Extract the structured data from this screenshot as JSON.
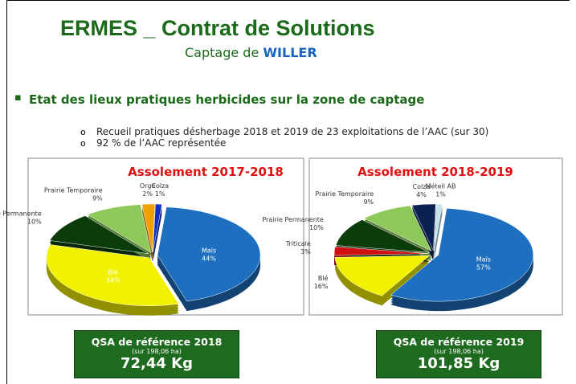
{
  "title": "ERMES _ Contrat de Solutions",
  "subtitle": {
    "text": "Captage de",
    "highlight": "WILLER"
  },
  "bullet": "Etat des lieux pratiques herbicides sur la zone de captage",
  "sub_bullets": [
    "Recueil pratiques désherbage 2018 et 2019 de 23 exploitations de l’AAC (sur 30)",
    "92 % de l’AAC représentée"
  ],
  "chart_data": [
    {
      "type": "pie",
      "title": "Assolement 2017-2018",
      "categories": [
        "Maïs",
        "Blé",
        "Prairie Permanente",
        "Prairie Temporaire",
        "Orge",
        "Colza"
      ],
      "values": [
        44,
        34,
        10,
        9,
        2,
        1
      ],
      "value_labels": [
        "44%",
        "34%",
        "10%",
        "9%",
        "2%",
        "1%"
      ],
      "colors": [
        "#1f6fc0",
        "#f2f200",
        "#0b3d0b",
        "#8dc85a",
        "#f0a000",
        "#1030c0"
      ]
    },
    {
      "type": "pie",
      "title": "Assolement 2018-2019",
      "categories": [
        "Maïs",
        "Blé",
        "Triticale",
        "Prairie Permanente",
        "Prairie Temporaire",
        "Colza",
        "Méteil AB"
      ],
      "values": [
        57,
        16,
        3,
        10,
        9,
        4,
        1
      ],
      "value_labels": [
        "57%",
        "16%",
        "3%",
        "10%",
        "9%",
        "4%",
        "1%"
      ],
      "colors": [
        "#1f6fc0",
        "#f2f200",
        "#d01010",
        "#0b3d0b",
        "#8dc85a",
        "#0a2050",
        "#bfe4f0"
      ]
    }
  ],
  "qsa_boxes": [
    {
      "title": "QSA de référence 2018",
      "note": "(sur 198,06 ha)",
      "value": "72,44 Kg"
    },
    {
      "title": "QSA de référence 2019",
      "note": "(sur 198,06 ha)",
      "value": "101,85 Kg"
    }
  ]
}
